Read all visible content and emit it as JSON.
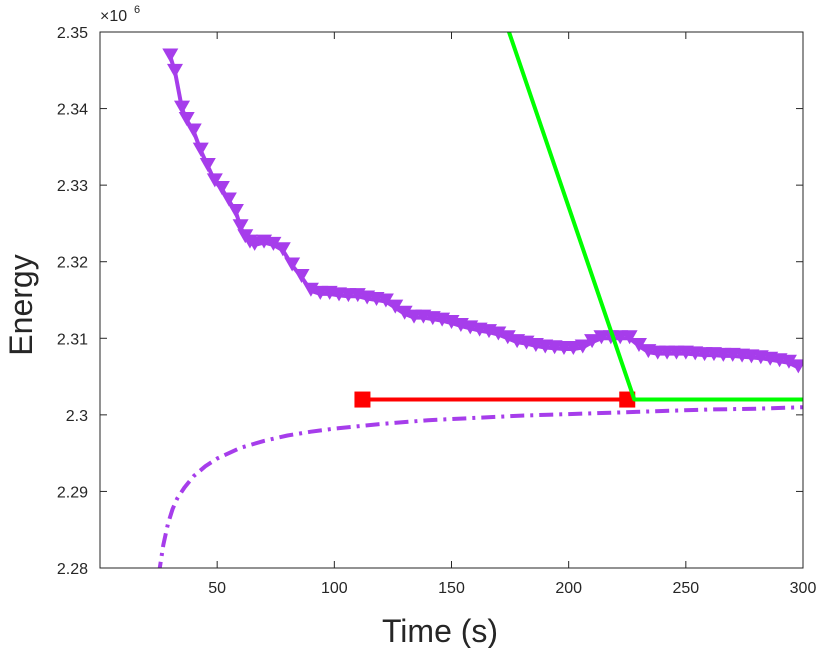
{
  "chart_data": {
    "type": "line",
    "title": "",
    "xlabel": "Time (s)",
    "ylabel": "Energy",
    "y_multiplier_base": "×10",
    "y_multiplier_exp": "6",
    "xlim": [
      0,
      300
    ],
    "ylim": [
      2.28,
      2.35
    ],
    "xticks": [
      "50",
      "100",
      "150",
      "200",
      "250",
      "300"
    ],
    "yticks": [
      "2.28",
      "2.29",
      "2.3",
      "2.31",
      "2.32",
      "2.33",
      "2.34",
      "2.35"
    ],
    "grid": false,
    "legend": "none",
    "series": [
      {
        "style": "solid-triangle-down",
        "color": "#a63deb",
        "x": [
          30,
          32,
          35,
          37,
          40,
          43,
          46,
          49,
          52,
          55,
          58,
          60,
          62,
          64,
          66,
          70,
          74,
          78,
          82,
          86,
          90,
          94,
          98,
          102,
          106,
          110,
          114,
          118,
          122,
          126,
          130,
          134,
          138,
          142,
          146,
          150,
          154,
          158,
          162,
          166,
          170,
          174,
          178,
          182,
          186,
          190,
          194,
          198,
          202,
          206,
          210,
          214,
          218,
          222,
          226,
          230,
          234,
          238,
          242,
          246,
          250,
          254,
          258,
          262,
          266,
          270,
          274,
          278,
          282,
          286,
          290,
          294,
          298
        ],
        "y": [
          2.3468,
          2.3448,
          2.34,
          2.3385,
          2.337,
          2.3345,
          2.3325,
          2.3305,
          2.3295,
          2.328,
          2.3265,
          2.3245,
          2.3232,
          2.3225,
          2.3222,
          2.3225,
          2.3222,
          2.3215,
          2.3195,
          2.318,
          2.3162,
          2.3158,
          2.3158,
          2.3156,
          2.3155,
          2.3155,
          2.3152,
          2.315,
          2.3148,
          2.314,
          2.3132,
          2.3127,
          2.3127,
          2.3125,
          2.3123,
          2.312,
          2.3116,
          2.3113,
          2.311,
          2.3108,
          2.3105,
          2.31,
          2.3095,
          2.3093,
          2.309,
          2.3088,
          2.3087,
          2.3086,
          2.3086,
          2.3088,
          2.3095,
          2.31,
          2.31,
          2.31,
          2.31,
          2.309,
          2.3082,
          2.308,
          2.308,
          2.308,
          2.308,
          2.3079,
          2.3078,
          2.3078,
          2.3077,
          2.3077,
          2.3076,
          2.3075,
          2.3074,
          2.3072,
          2.307,
          2.3068,
          2.3062
        ]
      },
      {
        "style": "dash-dot",
        "color": "#a63deb",
        "x": [
          25,
          27,
          29,
          31,
          33,
          36,
          40,
          45,
          50,
          60,
          70,
          80,
          90,
          100,
          120,
          140,
          160,
          180,
          200,
          220,
          240,
          260,
          280,
          300
        ],
        "y": [
          2.279,
          2.283,
          2.2858,
          2.2877,
          2.2891,
          2.2905,
          2.292,
          2.2933,
          2.2943,
          2.2957,
          2.2966,
          2.2973,
          2.2978,
          2.2982,
          2.2988,
          2.2993,
          2.2996,
          2.2999,
          2.3001,
          2.3003,
          2.3005,
          2.3007,
          2.3008,
          2.301
        ]
      },
      {
        "style": "solid-square",
        "color": "#ff0000",
        "x": [
          112,
          225
        ],
        "y": [
          2.302,
          2.302
        ]
      },
      {
        "style": "solid",
        "color": "#00ff00",
        "x": [
          174,
          228,
          232,
          300
        ],
        "y": [
          2.3505,
          2.302,
          2.302,
          2.302
        ]
      }
    ]
  }
}
